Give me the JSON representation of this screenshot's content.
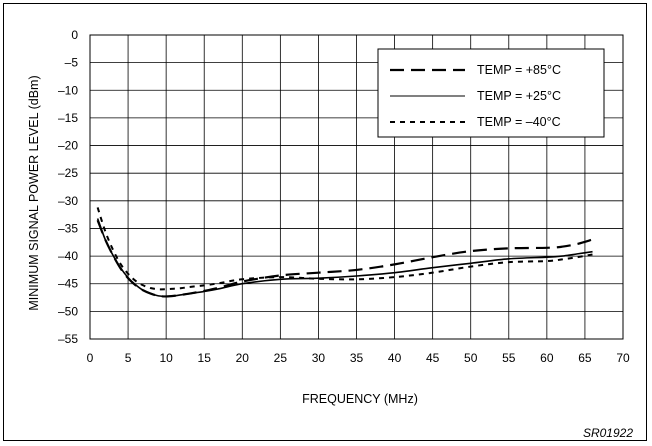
{
  "chart_data": {
    "type": "line",
    "xlabel": "FREQUENCY (MHz)",
    "ylabel": "MINIMUM SIGNAL POWER LEVEL (dBm)",
    "xlim": [
      0,
      70
    ],
    "ylim": [
      -55,
      0
    ],
    "x_ticks": [
      0,
      5,
      10,
      15,
      20,
      25,
      30,
      35,
      40,
      45,
      50,
      55,
      60,
      65,
      70
    ],
    "y_ticks": [
      0,
      -5,
      -10,
      -15,
      -20,
      -25,
      -30,
      -35,
      -40,
      -45,
      -50,
      -55
    ],
    "x_tick_labels": [
      "0",
      "5",
      "10",
      "15",
      "20",
      "25",
      "30",
      "35",
      "40",
      "45",
      "50",
      "55",
      "60",
      "65",
      "70"
    ],
    "y_tick_labels": [
      "0",
      "–5",
      "–10",
      "–15",
      "–20",
      "–25",
      "–30",
      "–35",
      "–40",
      "–45",
      "–50",
      "–55"
    ],
    "grid": true,
    "legend_position": "top-right",
    "series": [
      {
        "name": "TEMP = +85°C",
        "style": "long-dash",
        "x": [
          1,
          2,
          3,
          4,
          5,
          6,
          7,
          8,
          9,
          10,
          11,
          12,
          13,
          15,
          17,
          20,
          25,
          30,
          35,
          40,
          45,
          50,
          55,
          60,
          62,
          64,
          66
        ],
        "y": [
          -33.5,
          -37,
          -39.8,
          -42.2,
          -44,
          -45.3,
          -46.2,
          -46.8,
          -47.2,
          -47.3,
          -47.2,
          -47,
          -46.8,
          -46.3,
          -45.7,
          -44.6,
          -43.5,
          -43,
          -42.5,
          -41.5,
          -40.2,
          -39.1,
          -38.6,
          -38.5,
          -38.3,
          -37.8,
          -37
        ]
      },
      {
        "name": "TEMP = +25°C",
        "style": "solid",
        "x": [
          1,
          2,
          3,
          4,
          5,
          6,
          7,
          8,
          9,
          10,
          11,
          12,
          13,
          15,
          17,
          20,
          25,
          30,
          35,
          40,
          45,
          50,
          55,
          60,
          62,
          64,
          66
        ],
        "y": [
          -33.2,
          -37,
          -39.8,
          -42.1,
          -43.9,
          -45.2,
          -46.2,
          -46.8,
          -47.2,
          -47.3,
          -47.2,
          -47,
          -46.8,
          -46.4,
          -45.9,
          -45,
          -44.2,
          -44,
          -43.6,
          -43,
          -42.1,
          -41.3,
          -40.5,
          -40.2,
          -40,
          -39.6,
          -39.2
        ]
      },
      {
        "name": "TEMP = –40°C",
        "style": "short-dash",
        "x": [
          1,
          2,
          3,
          4,
          5,
          6,
          7,
          8,
          9,
          10,
          11,
          12,
          13,
          15,
          17,
          20,
          25,
          30,
          35,
          40,
          45,
          50,
          55,
          60,
          62,
          64,
          66
        ],
        "y": [
          -31.2,
          -35.5,
          -38.8,
          -41.4,
          -43.2,
          -44.5,
          -45.3,
          -45.8,
          -46,
          -46,
          -45.9,
          -45.8,
          -45.6,
          -45.3,
          -44.9,
          -44.2,
          -43.8,
          -44.1,
          -44.2,
          -43.8,
          -43,
          -41.9,
          -41.1,
          -40.9,
          -40.6,
          -40.2,
          -39.7
        ]
      }
    ]
  },
  "reference_code": "SR01922"
}
